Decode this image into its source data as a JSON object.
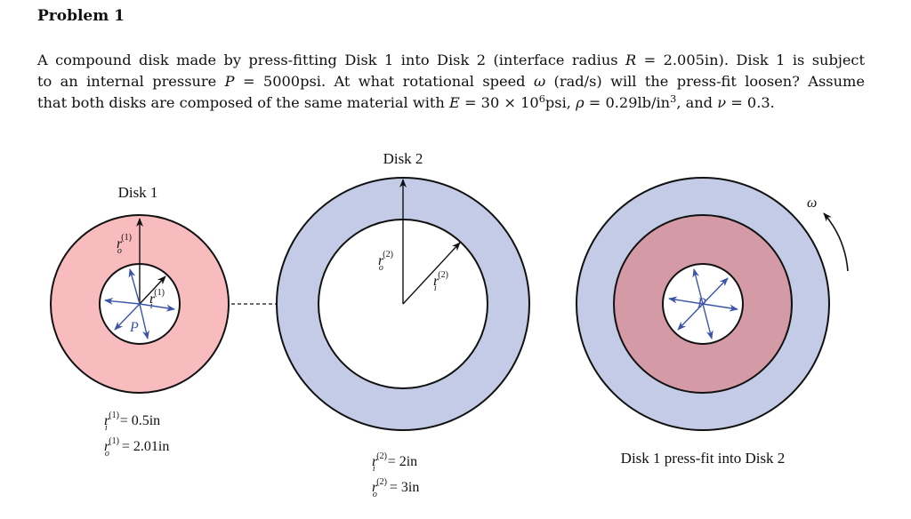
{
  "problem": {
    "title": "Problem 1",
    "lines": [
      {
        "parts": [
          "A compound disk made by press-fitting Disk 1 into Disk 2 (interface radius ",
          "R",
          " = 2.005in). Disk 1 is subject"
        ]
      },
      {
        "parts": [
          "to an internal pressure ",
          "P",
          " = 5000psi. At what rotational speed ",
          "ω",
          " (rad/s) will the press-fit loosen? Assume"
        ]
      },
      {
        "parts": [
          "that both disks are composed of the same material with ",
          "E",
          " = 30 × 10",
          "6",
          "psi, ",
          "ρ",
          " = 0.29lb/in",
          "3",
          ", and ",
          "ν",
          " = 0.3."
        ]
      }
    ]
  },
  "figure": {
    "disk1": {
      "caption": "Disk 1",
      "r_symbol": "r",
      "r_sup": "(1)",
      "sub_o": "o",
      "sub_i": "i",
      "pressure_symbol": "P",
      "ri_value": " = 0.5in",
      "ro_value": " = 2.01in",
      "color": "#f8bcbf"
    },
    "disk2": {
      "caption": "Disk 2",
      "r_symbol": "r",
      "r_sup": "(2)",
      "sub_o": "o",
      "sub_i": "i",
      "ri_value": " = 2in",
      "ro_value": " = 3in",
      "color": "#c3cbe6"
    },
    "assembly": {
      "omega_symbol": "ω",
      "pressure_symbol": "P",
      "caption": "Disk 1 press-fit into Disk 2",
      "inner_color": "#d49aa6",
      "outer_color": "#c3cbe6"
    },
    "arrow_color": "#3b54a8"
  }
}
